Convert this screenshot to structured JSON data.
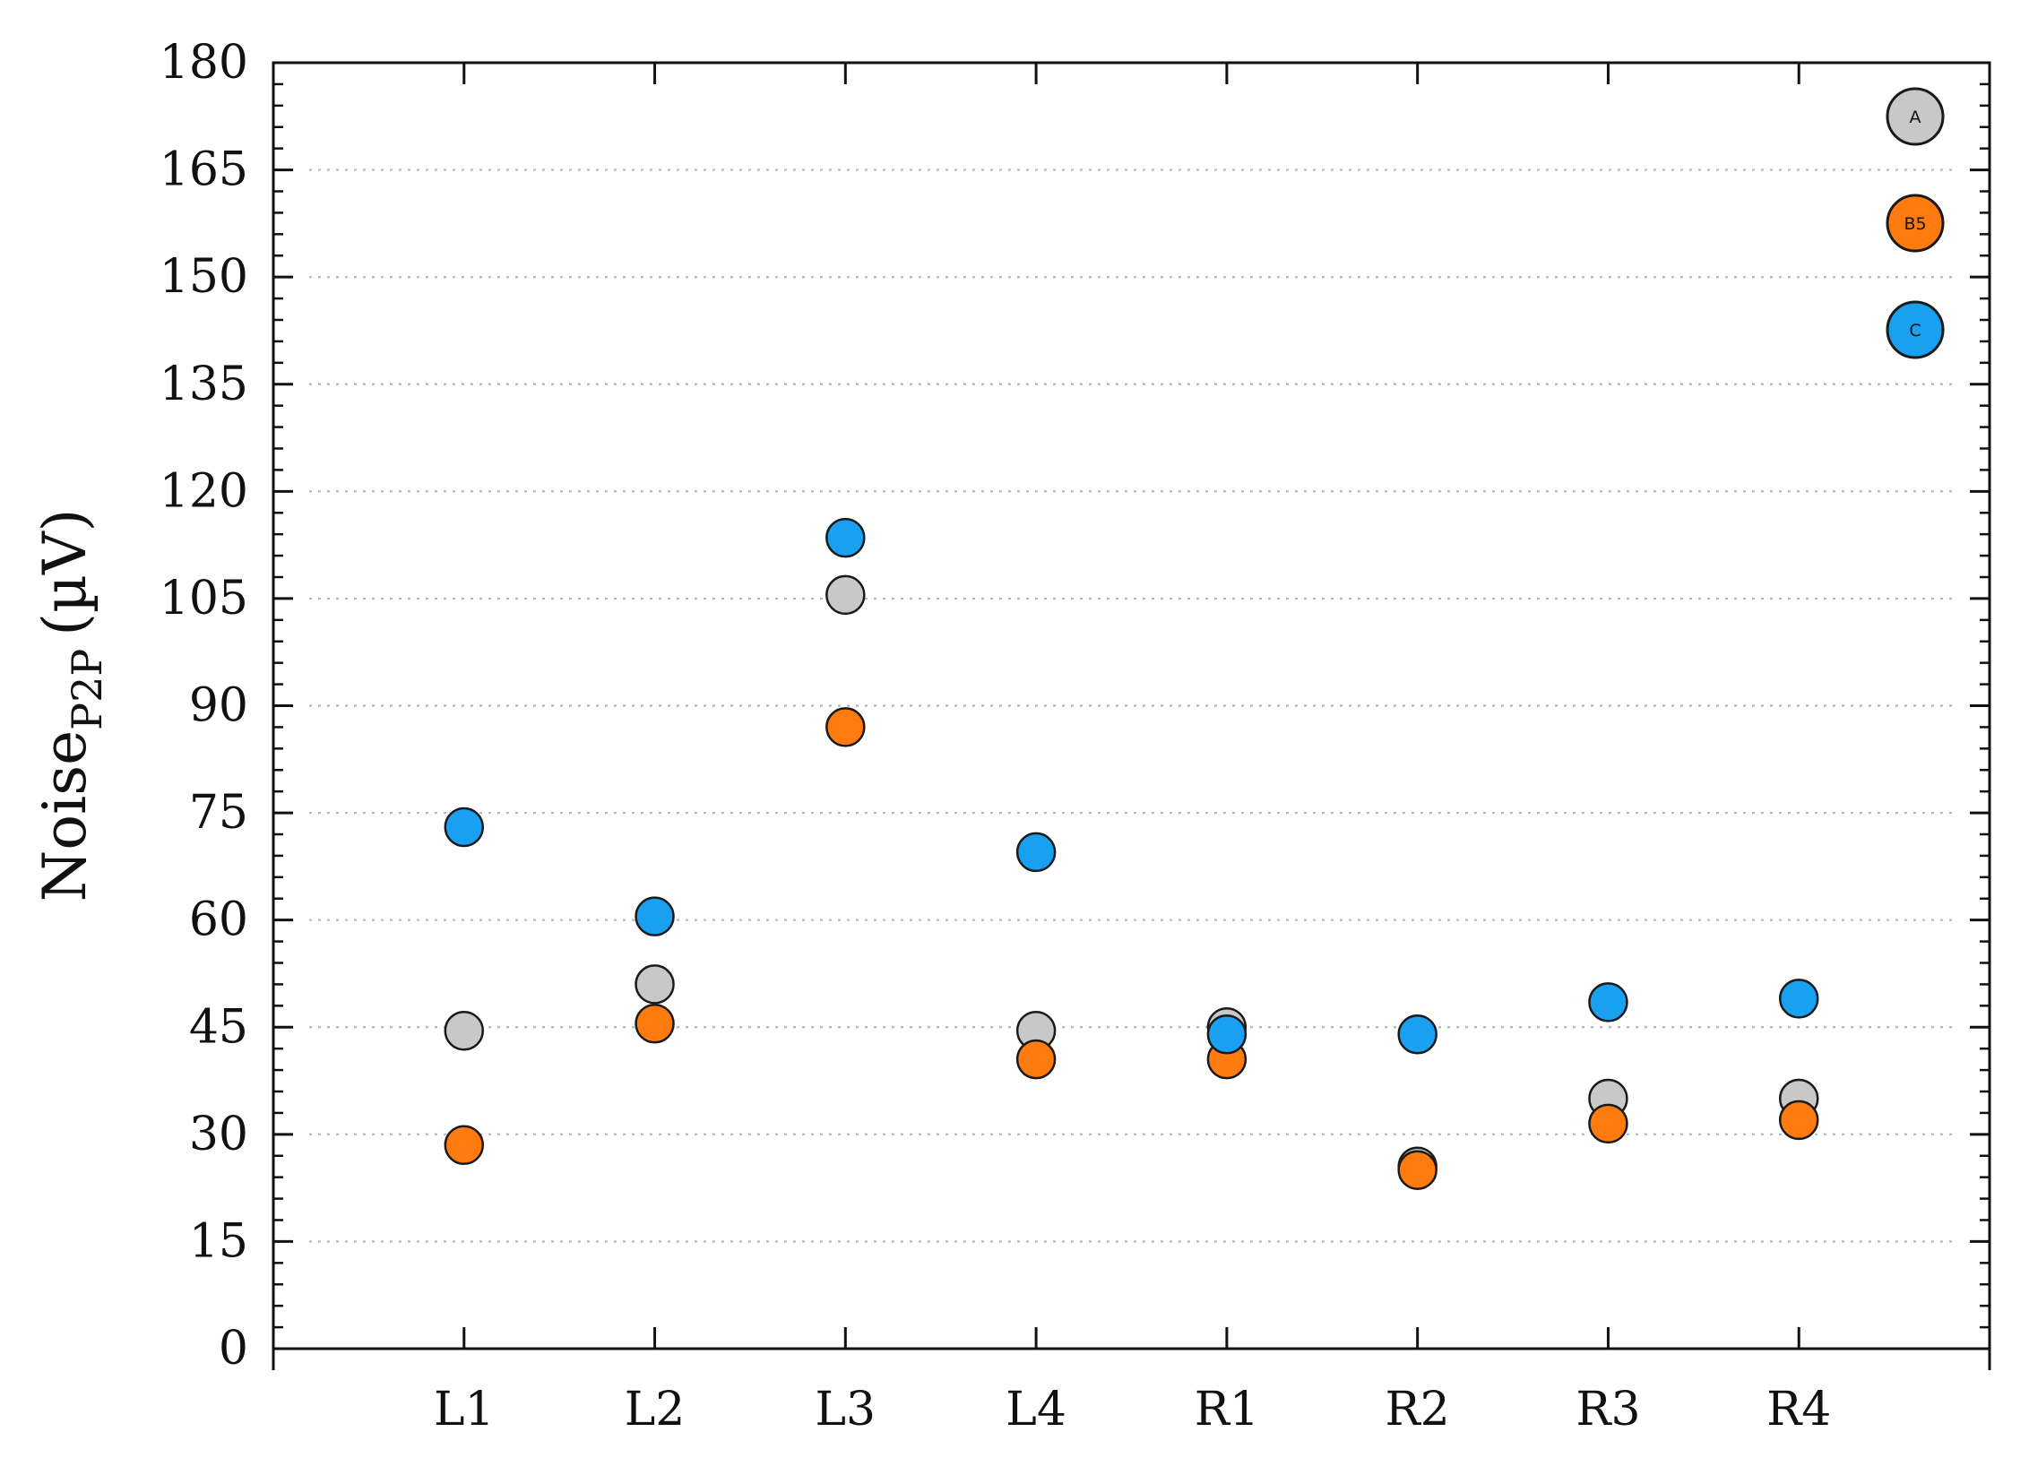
{
  "chart_data": {
    "type": "scatter",
    "title": "",
    "xlabel": "",
    "ylabel": {
      "main": "Noise",
      "subscript": "P2P",
      "unit": "(µV)"
    },
    "categories": [
      "L1",
      "L2",
      "L3",
      "L4",
      "R1",
      "R2",
      "R3",
      "R4"
    ],
    "ylim": [
      0,
      180
    ],
    "yticks": [
      0,
      15,
      30,
      45,
      60,
      75,
      90,
      105,
      120,
      135,
      150,
      165,
      180
    ],
    "grid": "horizontal-dotted",
    "legend_position": "top-right",
    "series": [
      {
        "name": "A",
        "color": "#c8c8c8",
        "values": [
          44.5,
          51,
          105.5,
          44.5,
          45,
          25.5,
          35,
          35
        ]
      },
      {
        "name": "B5",
        "color": "#ff7a0f",
        "values": [
          28.5,
          45.5,
          87,
          40.5,
          40.5,
          25,
          31.5,
          32
        ]
      },
      {
        "name": "C",
        "color": "#1aa0f0",
        "values": [
          73,
          60.5,
          113.5,
          69.5,
          44,
          44,
          48.5,
          49
        ]
      }
    ]
  }
}
